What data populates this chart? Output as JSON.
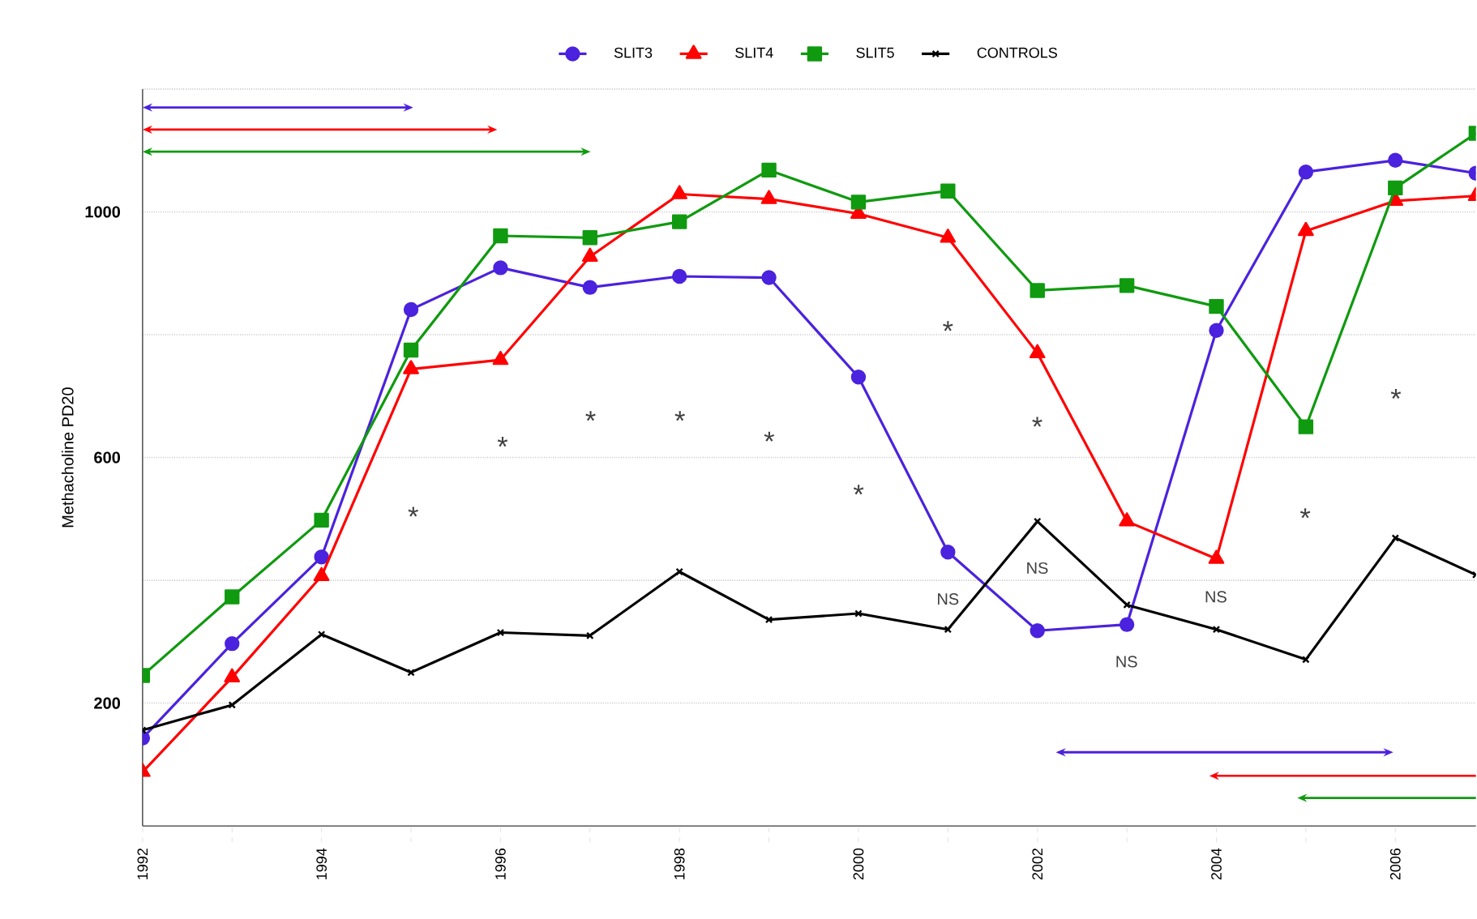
{
  "chart_data": {
    "type": "line",
    "ylabel": "Methacholine PD20",
    "x": [
      1992,
      1993,
      1994,
      1995,
      1996,
      1997,
      1998,
      1999,
      2000,
      2001,
      2002,
      2003,
      2004,
      2005,
      2006,
      2006.9
    ],
    "xlim": [
      1992,
      2006.9
    ],
    "xticks": [
      1992,
      {
        "value": 1993,
        "label": null
      },
      1994,
      {
        "value": 1995,
        "label": null
      },
      1996,
      {
        "value": 1997,
        "label": null
      },
      1998,
      {
        "value": 1999,
        "label": null
      },
      2000,
      {
        "value": 2001,
        "label": null
      },
      2002,
      {
        "value": 2003,
        "label": null
      },
      2004,
      {
        "value": 2005,
        "label": null
      },
      2006
    ],
    "ylim": [
      0,
      1200
    ],
    "yticks": [
      200,
      {
        "value": 400,
        "label": null
      },
      600,
      {
        "value": 800,
        "label": null
      },
      1000,
      {
        "value": 1200,
        "label": null
      }
    ],
    "grid": "y",
    "legend": "top",
    "series": [
      {
        "name": "SLIT3",
        "color": "#4b22dd",
        "marker": "circle",
        "values": [
          143,
          297,
          438,
          841,
          909,
          877,
          895,
          893,
          731,
          446,
          318,
          328,
          807,
          1065,
          1084,
          1063
        ]
      },
      {
        "name": "SLIT4",
        "color": "#ff0000",
        "marker": "triangle",
        "values": [
          88,
          242,
          407,
          744,
          759,
          927,
          1029,
          1021,
          997,
          958,
          770,
          496,
          435,
          969,
          1018,
          1026
        ]
      },
      {
        "name": "SLIT5",
        "color": "#109a10",
        "marker": "square",
        "values": [
          245,
          373,
          498,
          775,
          961,
          958,
          984,
          1068,
          1016,
          1034,
          872,
          880,
          846,
          650,
          1039,
          1128
        ]
      },
      {
        "name": "CONTROLS",
        "color": "#000000",
        "marker": "cross",
        "values": [
          156,
          197,
          312,
          250,
          315,
          310,
          414,
          336,
          346,
          320,
          496,
          360,
          320,
          271,
          469,
          409
        ]
      }
    ],
    "annotations": [
      "*",
      "*",
      "*",
      "*",
      "*",
      "*",
      "*",
      "*",
      "*",
      "*",
      "NS",
      "NS",
      "NS",
      "NS"
    ]
  }
}
